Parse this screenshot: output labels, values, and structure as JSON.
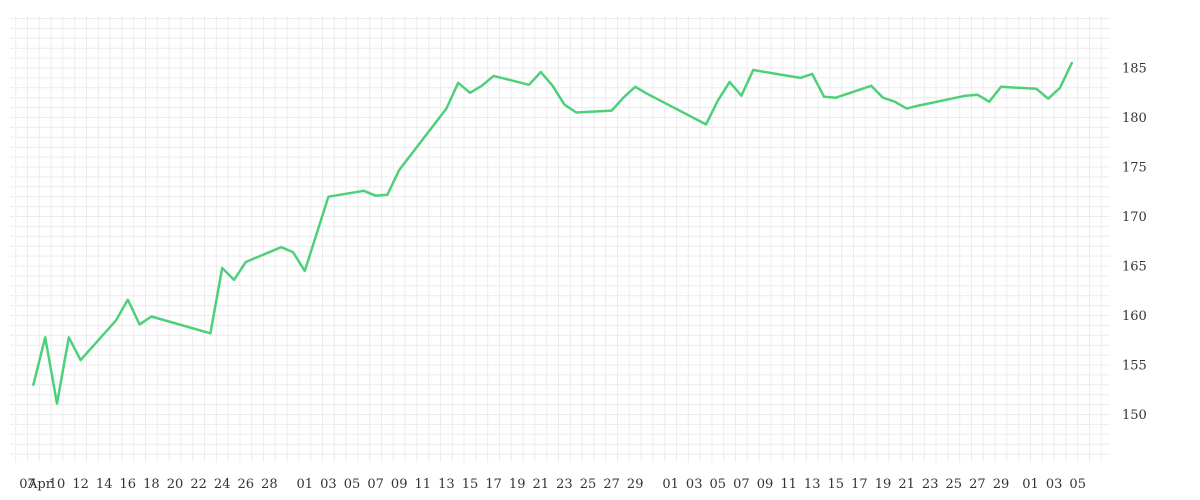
{
  "chart_data": {
    "type": "line",
    "title": "",
    "xlabel": "",
    "ylabel": "",
    "ylim": [
      145,
      190
    ],
    "yticks": [
      150,
      155,
      160,
      165,
      170,
      175,
      180,
      185
    ],
    "y_axis_position": "right",
    "grid": true,
    "legend": "none",
    "x_tick_labels": [
      "07",
      "Apr",
      "10",
      "12",
      "14",
      "16",
      "18",
      "20",
      "22",
      "24",
      "26",
      "28",
      "01",
      "03",
      "05",
      "07",
      "09",
      "11",
      "13",
      "15",
      "17",
      "19",
      "21",
      "23",
      "25",
      "27",
      "29",
      "01",
      "03",
      "05",
      "07",
      "09",
      "11",
      "13",
      "15",
      "17",
      "19",
      "21",
      "23",
      "25",
      "27",
      "29",
      "01",
      "03",
      "05"
    ],
    "x_tick_positions": [
      0.0,
      0.5,
      2.5,
      4.5,
      6.5,
      8.5,
      10.5,
      12.5,
      14.5,
      16.5,
      18.5,
      20.5,
      23.5,
      25.5,
      27.5,
      29.5,
      31.5,
      33.5,
      35.5,
      37.5,
      39.5,
      41.5,
      43.5,
      45.5,
      47.5,
      49.5,
      51.5,
      54.5,
      56.5,
      58.5,
      60.5,
      62.5,
      64.5,
      66.5,
      68.5,
      70.5,
      72.5,
      74.5,
      76.5,
      78.5,
      80.5,
      82.5,
      85.0,
      87.0,
      89.0
    ],
    "series": [
      {
        "color": "#4ed07a",
        "x": [
          0.5,
          1.5,
          2.5,
          3.5,
          4.5,
          7.5,
          8.5,
          9.5,
          10.5,
          15.5,
          16.5,
          17.5,
          18.5,
          21.5,
          22.5,
          23.5,
          25.5,
          28.5,
          29.5,
          30.5,
          31.5,
          35.5,
          36.5,
          37.5,
          38.5,
          39.5,
          42.5,
          43.5,
          44.5,
          45.5,
          46.5,
          49.5,
          50.5,
          51.5,
          52.5,
          57.5,
          58.5,
          59.5,
          60.5,
          61.5,
          65.5,
          66.5,
          67.5,
          68.5,
          71.5,
          72.5,
          73.5,
          74.5,
          75.5,
          79.5,
          80.5,
          81.5,
          82.5,
          85.5,
          86.5,
          87.5,
          88.5
        ],
        "y": [
          153.0,
          157.8,
          151.1,
          157.8,
          155.5,
          159.5,
          161.6,
          159.1,
          159.9,
          158.2,
          164.8,
          163.6,
          165.4,
          166.9,
          166.4,
          164.5,
          172.0,
          172.6,
          172.1,
          172.2,
          174.7,
          180.9,
          183.5,
          182.5,
          183.2,
          184.2,
          183.3,
          184.6,
          183.2,
          181.3,
          180.5,
          180.7,
          182.0,
          183.1,
          182.4,
          179.3,
          181.7,
          183.6,
          182.2,
          184.8,
          184.0,
          184.4,
          182.1,
          182.0,
          183.2,
          182.0,
          181.6,
          180.9,
          181.2,
          182.2,
          182.3,
          181.6,
          183.1,
          182.9,
          181.9,
          183.0,
          185.5
        ]
      }
    ]
  }
}
